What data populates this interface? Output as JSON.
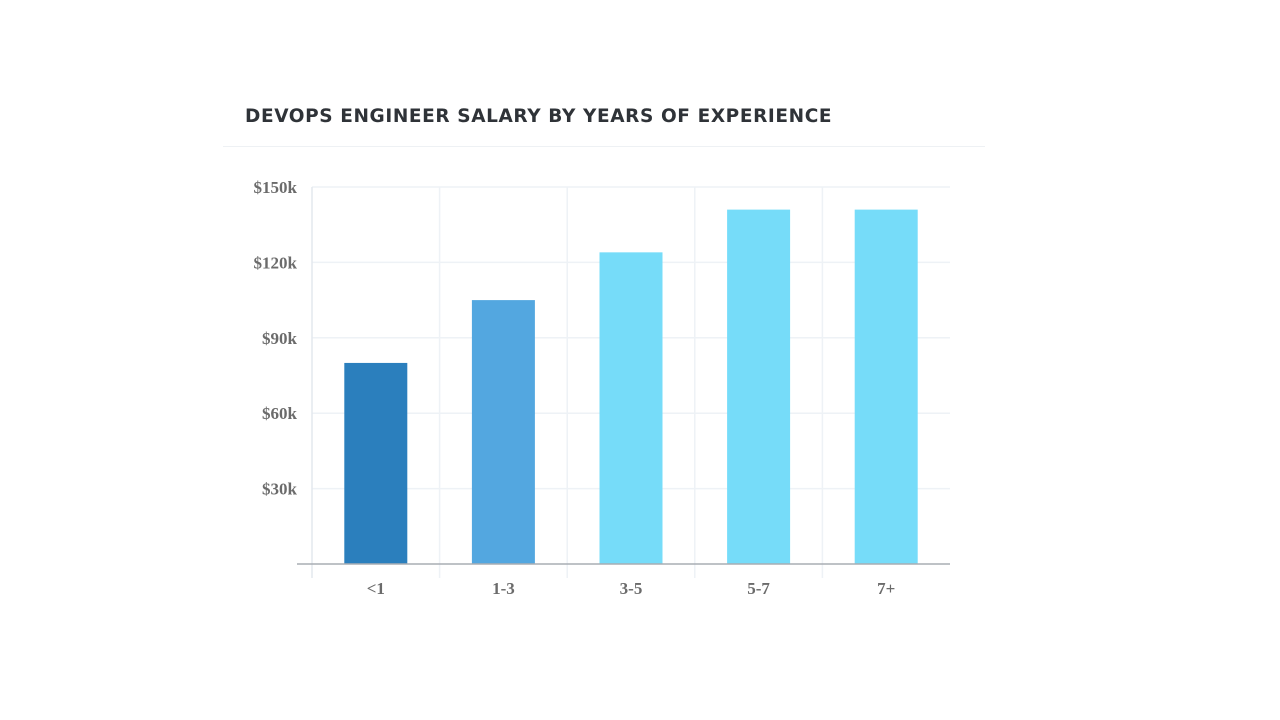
{
  "chart_data": {
    "type": "bar",
    "title": "DEVOPS ENGINEER SALARY BY YEARS OF EXPERIENCE",
    "xlabel": "",
    "ylabel": "",
    "categories": [
      "<1",
      "1-3",
      "3-5",
      "5-7",
      "7+"
    ],
    "values": [
      80,
      105,
      124,
      141,
      141
    ],
    "value_unit": "thousand USD",
    "colors": [
      "#2b7fbd",
      "#53a7e0",
      "#76dcf9",
      "#76dcf9",
      "#76dcf9"
    ],
    "ylim": [
      0,
      150
    ],
    "yticks": [
      30,
      60,
      90,
      120,
      150
    ],
    "ytick_labels": [
      "$30k",
      "$60k",
      "$90k",
      "$120k",
      "$150k"
    ],
    "grid": true,
    "legend": "none"
  }
}
